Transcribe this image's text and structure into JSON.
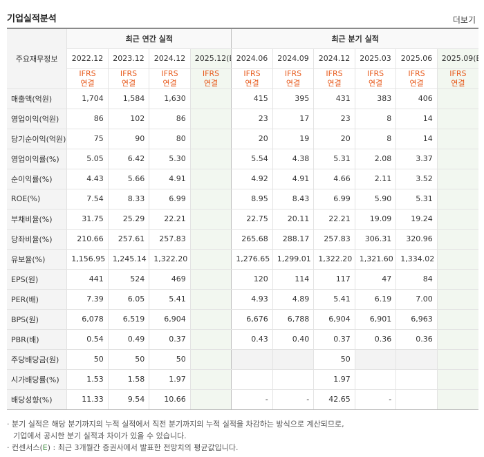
{
  "page_title": "기업실적분석",
  "more_link": "더보기",
  "corner_label": "주요재무정보",
  "annual_group_label": "최근 연간 실적",
  "quarter_group_label": "최근 분기 실적",
  "annual_periods": [
    "2022.12",
    "2023.12",
    "2024.12",
    "2025.12(E)"
  ],
  "quarter_periods": [
    "2024.06",
    "2024.09",
    "2024.12",
    "2025.03",
    "2025.06",
    "2025.09(E)"
  ],
  "ifrs_top": "IFRS",
  "ifrs_bottom": "연결",
  "rows": [
    {
      "label": "매출액(억원)",
      "annual": [
        "1,704",
        "1,584",
        "1,630",
        ""
      ],
      "quarter": [
        "415",
        "395",
        "431",
        "383",
        "406",
        ""
      ]
    },
    {
      "label": "영업이익(억원)",
      "annual": [
        "86",
        "102",
        "86",
        ""
      ],
      "quarter": [
        "23",
        "17",
        "23",
        "8",
        "14",
        ""
      ]
    },
    {
      "label": "당기순이익(억원)",
      "annual": [
        "75",
        "90",
        "80",
        ""
      ],
      "quarter": [
        "20",
        "19",
        "20",
        "8",
        "14",
        ""
      ]
    },
    {
      "label": "영업이익률(%)",
      "annual": [
        "5.05",
        "6.42",
        "5.30",
        ""
      ],
      "quarter": [
        "5.54",
        "4.38",
        "5.31",
        "2.08",
        "3.37",
        ""
      ]
    },
    {
      "label": "순이익률(%)",
      "annual": [
        "4.43",
        "5.66",
        "4.91",
        ""
      ],
      "quarter": [
        "4.92",
        "4.91",
        "4.66",
        "2.11",
        "3.52",
        ""
      ]
    },
    {
      "label": "ROE(%)",
      "annual": [
        "7.54",
        "8.33",
        "6.99",
        ""
      ],
      "quarter": [
        "8.95",
        "8.43",
        "6.99",
        "5.90",
        "5.31",
        ""
      ]
    },
    {
      "label": "부채비율(%)",
      "annual": [
        "31.75",
        "25.29",
        "22.21",
        ""
      ],
      "quarter": [
        "22.75",
        "20.11",
        "22.21",
        "19.09",
        "19.24",
        ""
      ]
    },
    {
      "label": "당좌비율(%)",
      "annual": [
        "210.66",
        "257.61",
        "257.83",
        ""
      ],
      "quarter": [
        "265.68",
        "288.17",
        "257.83",
        "306.31",
        "320.96",
        ""
      ]
    },
    {
      "label": "유보율(%)",
      "annual": [
        "1,156.95",
        "1,245.14",
        "1,322.20",
        ""
      ],
      "quarter": [
        "1,276.65",
        "1,299.01",
        "1,322.20",
        "1,321.60",
        "1,334.02",
        ""
      ]
    },
    {
      "label": "EPS(원)",
      "annual": [
        "441",
        "524",
        "469",
        ""
      ],
      "quarter": [
        "120",
        "114",
        "117",
        "47",
        "84",
        ""
      ]
    },
    {
      "label": "PER(배)",
      "annual": [
        "7.39",
        "6.05",
        "5.41",
        ""
      ],
      "quarter": [
        "4.93",
        "4.89",
        "5.41",
        "6.19",
        "7.00",
        ""
      ]
    },
    {
      "label": "BPS(원)",
      "annual": [
        "6,078",
        "6,519",
        "6,904",
        ""
      ],
      "quarter": [
        "6,676",
        "6,788",
        "6,904",
        "6,901",
        "6,963",
        ""
      ]
    },
    {
      "label": "PBR(배)",
      "annual": [
        "0.54",
        "0.49",
        "0.37",
        ""
      ],
      "quarter": [
        "0.43",
        "0.40",
        "0.37",
        "0.36",
        "0.36",
        ""
      ]
    },
    {
      "label": "주당배당금(원)",
      "annual": [
        "50",
        "50",
        "50",
        ""
      ],
      "quarter": [
        "",
        "",
        "50",
        "",
        "",
        ""
      ],
      "quarter_gray": [
        true,
        true,
        false,
        true,
        true,
        false
      ]
    },
    {
      "label": "시가배당률(%)",
      "annual": [
        "1.53",
        "1.58",
        "1.97",
        ""
      ],
      "quarter": [
        "",
        "",
        "1.97",
        "",
        "",
        ""
      ]
    },
    {
      "label": "배당성향(%)",
      "annual": [
        "11.33",
        "9.54",
        "10.66",
        ""
      ],
      "quarter": [
        "-",
        "-",
        "42.65",
        "-",
        "",
        ""
      ]
    }
  ],
  "notes": [
    "· 분기 실적은 해당 분기까지의 누적 실적에서 직전 분기까지의 누적 실적을 차감하는 방식으로 계산되므로,",
    "기업에서 공시한 분기 실적과 차이가 있을 수 있습니다.",
    "· 컨센서스(",
    "E",
    ") : 최근 3개월간 증권사에서 발표한 전망치의 평균값입니다."
  ],
  "colors": {
    "ifrs": "#e75a1c",
    "estimate_bg": "#f2f7f0",
    "label_bg": "#f4f4f4"
  }
}
